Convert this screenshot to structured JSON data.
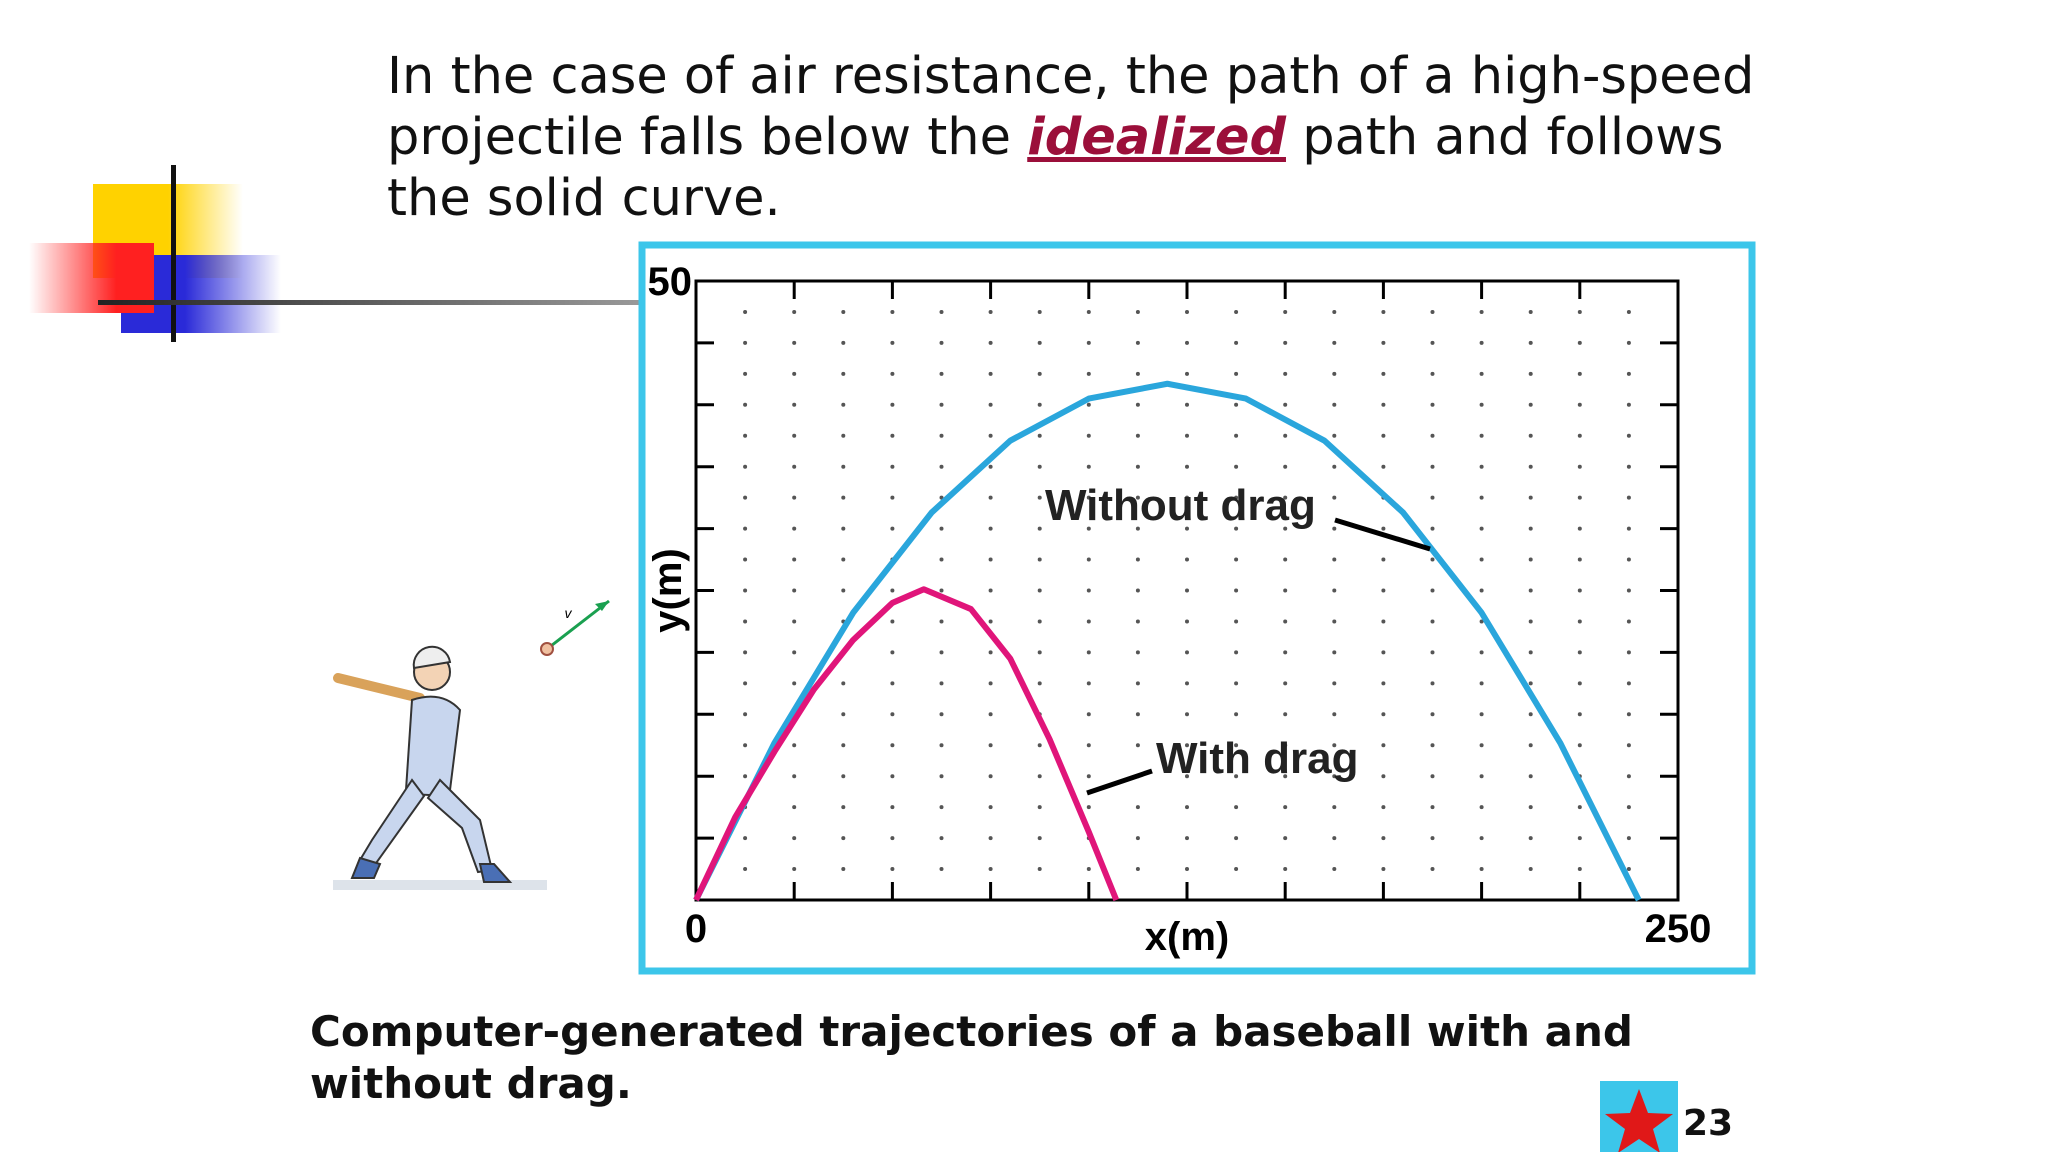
{
  "slide": {
    "paragraph": {
      "before": "In the case of air resistance, the path of a high-speed projectile falls below the",
      "emphasis": "idealized",
      "after": "path and follows the solid curve."
    },
    "illustration_label": "v",
    "caption": "Computer-generated trajectories of a baseball with and without drag.",
    "page_number": "23"
  },
  "chart_data": {
    "type": "line",
    "x_label": "x(m)",
    "y_label": "y(m)",
    "xlim": [
      0,
      250
    ],
    "ylim": [
      0,
      50
    ],
    "xticks": [
      0,
      250
    ],
    "yticks": [
      0,
      50
    ],
    "x_minor_ticks": [
      25,
      50,
      75,
      100,
      125,
      150,
      175,
      200,
      225
    ],
    "y_minor_ticks": [
      5,
      10,
      15,
      20,
      25,
      30,
      35,
      40,
      45
    ],
    "grid": "dots",
    "series": [
      {
        "name": "Without drag",
        "color": "#2aa6dc",
        "x": [
          0,
          20,
          40,
          60,
          80,
          100,
          120,
          140,
          160,
          180,
          200,
          220,
          240
        ],
        "values": [
          0,
          12.7,
          23.2,
          31.3,
          37.1,
          40.5,
          41.7,
          40.5,
          37.1,
          31.3,
          23.2,
          12.7,
          0
        ]
      },
      {
        "name": "With drag",
        "color": "#e0157a",
        "x": [
          0,
          10,
          20,
          30,
          40,
          50,
          58,
          70,
          80,
          90,
          100,
          107
        ],
        "values": [
          0,
          6.7,
          12,
          17,
          21,
          24,
          25.1,
          23.5,
          19.5,
          13,
          5.5,
          0
        ]
      }
    ]
  }
}
